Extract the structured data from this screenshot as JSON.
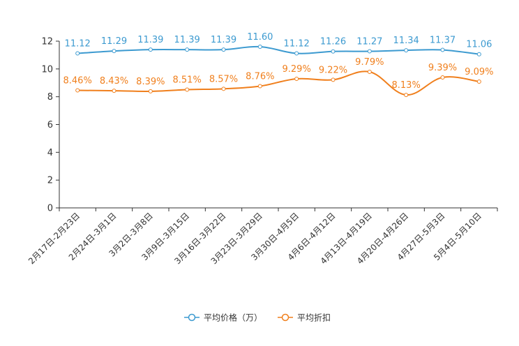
{
  "chart_data": {
    "type": "line",
    "title": "",
    "xlabel": "",
    "ylabel": "",
    "ylim": [
      0,
      12
    ],
    "yticks": [
      "0",
      "2",
      "4",
      "6",
      "8",
      "10",
      "12"
    ],
    "categories": [
      "2月17日-2月23日",
      "2月24日-3月1日",
      "3月2日-3月8日",
      "3月9日-3月15日",
      "3月16日-3月22日",
      "3月23日-3月29日",
      "3月30日-4月5日",
      "4月6日-4月12日",
      "4月13日-4月19日",
      "4月20日-4月26日",
      "4月27日-5月3日",
      "5月4日-5月10日"
    ],
    "series": [
      {
        "name": "平均价格（万）",
        "color": "#3c9ad0",
        "values": [
          11.12,
          11.29,
          11.39,
          11.39,
          11.39,
          11.6,
          11.12,
          11.26,
          11.27,
          11.34,
          11.37,
          11.06
        ],
        "labels": [
          "11.12",
          "11.29",
          "11.39",
          "11.39",
          "11.39",
          "11.60",
          "11.12",
          "11.26",
          "11.27",
          "11.34",
          "11.37",
          "11.06"
        ]
      },
      {
        "name": "平均折扣",
        "color": "#f07f1c",
        "values": [
          8.46,
          8.43,
          8.39,
          8.51,
          8.57,
          8.76,
          9.29,
          9.22,
          9.79,
          8.13,
          9.39,
          9.09
        ],
        "labels": [
          "8.46%",
          "8.43%",
          "8.39%",
          "8.51%",
          "8.57%",
          "8.76%",
          "9.29%",
          "9.22%",
          "9.79%",
          "8.13%",
          "9.39%",
          "9.09%"
        ]
      }
    ],
    "legend": "bottom-center",
    "grid": false
  }
}
